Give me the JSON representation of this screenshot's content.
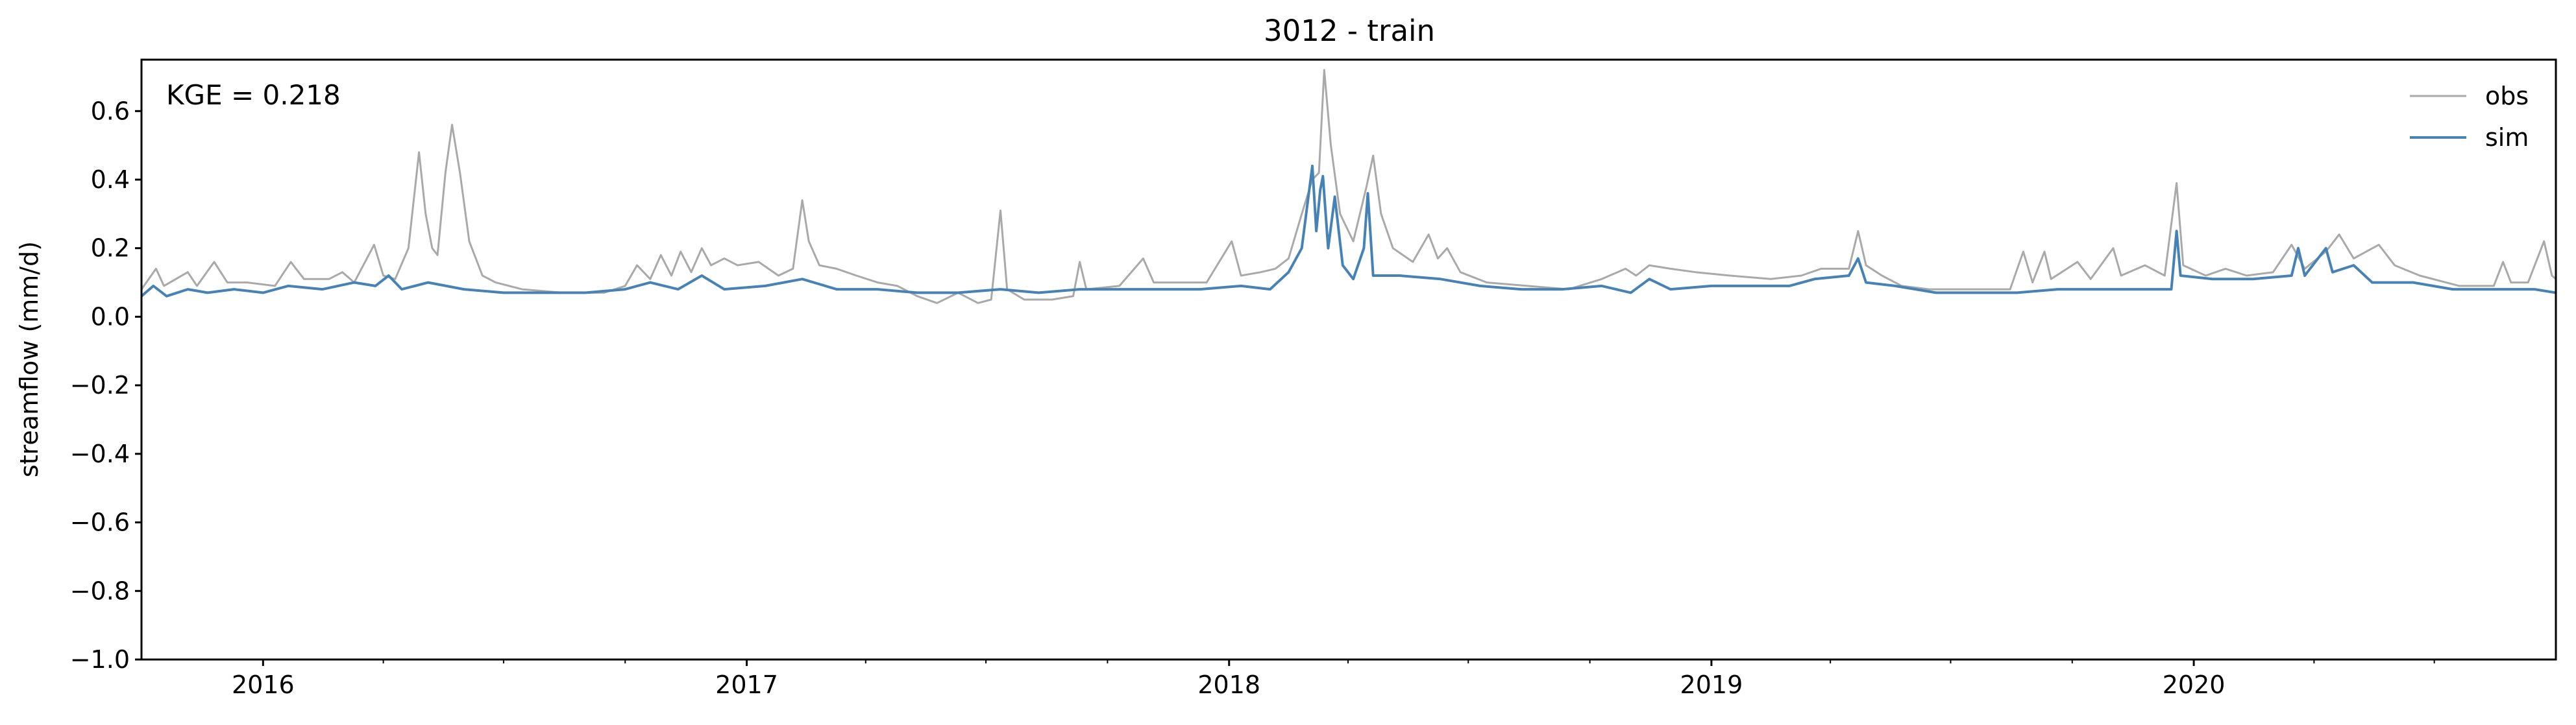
{
  "chart_data": {
    "type": "line",
    "title": "3012 - train",
    "xlabel": "",
    "ylabel": "streamflow (mm/d)",
    "annotation": "KGE = 0.218",
    "x_range": [
      "2015-10-01",
      "2020-10-01"
    ],
    "ylim": [
      -1.0,
      0.75
    ],
    "yticks": [
      0.6,
      0.4,
      0.2,
      0.0,
      -0.2,
      -0.4,
      -0.6,
      -0.8,
      -1.0
    ],
    "ytick_labels": [
      "0.6",
      "0.4",
      "0.2",
      "0.0",
      "−0.2",
      "−0.4",
      "−0.6",
      "−0.8",
      "−1.0"
    ],
    "xticks": [
      "2016-01-01",
      "2017-01-01",
      "2018-01-01",
      "2019-01-01",
      "2020-01-01"
    ],
    "xtick_labels": [
      "2016",
      "2017",
      "2018",
      "2019",
      "2020"
    ],
    "grid": false,
    "legend_position": "top-right",
    "series": [
      {
        "name": "obs",
        "color": "#a9a9a9",
        "points": [
          [
            "2015-10-01",
            0.08
          ],
          [
            "2015-10-12",
            0.14
          ],
          [
            "2015-10-18",
            0.09
          ],
          [
            "2015-11-05",
            0.13
          ],
          [
            "2015-11-12",
            0.09
          ],
          [
            "2015-11-25",
            0.16
          ],
          [
            "2015-12-05",
            0.1
          ],
          [
            "2015-12-20",
            0.1
          ],
          [
            "2016-01-10",
            0.09
          ],
          [
            "2016-01-22",
            0.16
          ],
          [
            "2016-02-01",
            0.11
          ],
          [
            "2016-02-20",
            0.11
          ],
          [
            "2016-03-01",
            0.13
          ],
          [
            "2016-03-10",
            0.1
          ],
          [
            "2016-03-25",
            0.21
          ],
          [
            "2016-04-01",
            0.12
          ],
          [
            "2016-04-10",
            0.11
          ],
          [
            "2016-04-20",
            0.2
          ],
          [
            "2016-04-28",
            0.48
          ],
          [
            "2016-05-03",
            0.3
          ],
          [
            "2016-05-08",
            0.2
          ],
          [
            "2016-05-12",
            0.18
          ],
          [
            "2016-05-18",
            0.42
          ],
          [
            "2016-05-23",
            0.56
          ],
          [
            "2016-05-29",
            0.42
          ],
          [
            "2016-06-05",
            0.22
          ],
          [
            "2016-06-15",
            0.12
          ],
          [
            "2016-06-25",
            0.1
          ],
          [
            "2016-07-15",
            0.08
          ],
          [
            "2016-08-15",
            0.07
          ],
          [
            "2016-09-15",
            0.07
          ],
          [
            "2016-10-01",
            0.09
          ],
          [
            "2016-10-10",
            0.15
          ],
          [
            "2016-10-20",
            0.11
          ],
          [
            "2016-10-28",
            0.18
          ],
          [
            "2016-11-05",
            0.12
          ],
          [
            "2016-11-12",
            0.19
          ],
          [
            "2016-11-20",
            0.13
          ],
          [
            "2016-11-28",
            0.2
          ],
          [
            "2016-12-05",
            0.15
          ],
          [
            "2016-12-15",
            0.17
          ],
          [
            "2016-12-25",
            0.15
          ],
          [
            "2017-01-10",
            0.16
          ],
          [
            "2017-01-25",
            0.12
          ],
          [
            "2017-02-05",
            0.14
          ],
          [
            "2017-02-12",
            0.34
          ],
          [
            "2017-02-17",
            0.22
          ],
          [
            "2017-02-25",
            0.15
          ],
          [
            "2017-03-10",
            0.14
          ],
          [
            "2017-03-25",
            0.12
          ],
          [
            "2017-04-10",
            0.1
          ],
          [
            "2017-04-25",
            0.09
          ],
          [
            "2017-05-10",
            0.06
          ],
          [
            "2017-05-25",
            0.04
          ],
          [
            "2017-06-10",
            0.07
          ],
          [
            "2017-06-25",
            0.04
          ],
          [
            "2017-07-05",
            0.05
          ],
          [
            "2017-07-12",
            0.31
          ],
          [
            "2017-07-17",
            0.08
          ],
          [
            "2017-07-30",
            0.05
          ],
          [
            "2017-08-20",
            0.05
          ],
          [
            "2017-09-05",
            0.06
          ],
          [
            "2017-09-10",
            0.16
          ],
          [
            "2017-09-15",
            0.08
          ],
          [
            "2017-10-10",
            0.09
          ],
          [
            "2017-10-28",
            0.17
          ],
          [
            "2017-11-05",
            0.1
          ],
          [
            "2017-11-25",
            0.1
          ],
          [
            "2017-12-15",
            0.1
          ],
          [
            "2018-01-03",
            0.22
          ],
          [
            "2018-01-10",
            0.12
          ],
          [
            "2018-01-25",
            0.13
          ],
          [
            "2018-02-05",
            0.14
          ],
          [
            "2018-02-15",
            0.17
          ],
          [
            "2018-02-25",
            0.3
          ],
          [
            "2018-03-05",
            0.4
          ],
          [
            "2018-03-10",
            0.42
          ],
          [
            "2018-03-14",
            0.72
          ],
          [
            "2018-03-19",
            0.5
          ],
          [
            "2018-03-26",
            0.3
          ],
          [
            "2018-04-05",
            0.22
          ],
          [
            "2018-04-15",
            0.38
          ],
          [
            "2018-04-20",
            0.47
          ],
          [
            "2018-04-26",
            0.3
          ],
          [
            "2018-05-05",
            0.2
          ],
          [
            "2018-05-20",
            0.16
          ],
          [
            "2018-06-01",
            0.24
          ],
          [
            "2018-06-08",
            0.17
          ],
          [
            "2018-06-15",
            0.2
          ],
          [
            "2018-06-25",
            0.13
          ],
          [
            "2018-07-15",
            0.1
          ],
          [
            "2018-08-15",
            0.09
          ],
          [
            "2018-09-15",
            0.08
          ],
          [
            "2018-10-10",
            0.11
          ],
          [
            "2018-10-28",
            0.14
          ],
          [
            "2018-11-05",
            0.12
          ],
          [
            "2018-11-15",
            0.15
          ],
          [
            "2018-12-01",
            0.14
          ],
          [
            "2018-12-20",
            0.13
          ],
          [
            "2019-01-15",
            0.12
          ],
          [
            "2019-02-15",
            0.11
          ],
          [
            "2019-03-10",
            0.12
          ],
          [
            "2019-03-25",
            0.14
          ],
          [
            "2019-04-15",
            0.14
          ],
          [
            "2019-04-22",
            0.25
          ],
          [
            "2019-04-28",
            0.15
          ],
          [
            "2019-05-10",
            0.12
          ],
          [
            "2019-05-25",
            0.09
          ],
          [
            "2019-06-15",
            0.08
          ],
          [
            "2019-07-15",
            0.08
          ],
          [
            "2019-08-15",
            0.08
          ],
          [
            "2019-08-25",
            0.19
          ],
          [
            "2019-09-01",
            0.1
          ],
          [
            "2019-09-10",
            0.19
          ],
          [
            "2019-09-15",
            0.11
          ],
          [
            "2019-10-05",
            0.16
          ],
          [
            "2019-10-15",
            0.11
          ],
          [
            "2019-11-01",
            0.2
          ],
          [
            "2019-11-07",
            0.12
          ],
          [
            "2019-11-25",
            0.15
          ],
          [
            "2019-12-10",
            0.12
          ],
          [
            "2019-12-19",
            0.39
          ],
          [
            "2019-12-24",
            0.15
          ],
          [
            "2020-01-10",
            0.12
          ],
          [
            "2020-01-25",
            0.14
          ],
          [
            "2020-02-10",
            0.12
          ],
          [
            "2020-03-01",
            0.13
          ],
          [
            "2020-03-15",
            0.21
          ],
          [
            "2020-03-25",
            0.14
          ],
          [
            "2020-04-10",
            0.19
          ],
          [
            "2020-04-20",
            0.24
          ],
          [
            "2020-05-01",
            0.17
          ],
          [
            "2020-05-20",
            0.21
          ],
          [
            "2020-06-01",
            0.15
          ],
          [
            "2020-06-20",
            0.12
          ],
          [
            "2020-07-20",
            0.09
          ],
          [
            "2020-08-15",
            0.09
          ],
          [
            "2020-08-22",
            0.16
          ],
          [
            "2020-08-28",
            0.1
          ],
          [
            "2020-09-10",
            0.1
          ],
          [
            "2020-09-22",
            0.22
          ],
          [
            "2020-09-28",
            0.12
          ],
          [
            "2020-10-01",
            0.11
          ]
        ]
      },
      {
        "name": "sim",
        "color": "#4682b4",
        "points": [
          [
            "2015-10-01",
            0.06
          ],
          [
            "2015-10-10",
            0.09
          ],
          [
            "2015-10-20",
            0.06
          ],
          [
            "2015-11-05",
            0.08
          ],
          [
            "2015-11-20",
            0.07
          ],
          [
            "2015-12-10",
            0.08
          ],
          [
            "2016-01-01",
            0.07
          ],
          [
            "2016-01-20",
            0.09
          ],
          [
            "2016-02-15",
            0.08
          ],
          [
            "2016-03-10",
            0.1
          ],
          [
            "2016-03-26",
            0.09
          ],
          [
            "2016-04-05",
            0.12
          ],
          [
            "2016-04-15",
            0.08
          ],
          [
            "2016-05-05",
            0.1
          ],
          [
            "2016-06-01",
            0.08
          ],
          [
            "2016-07-01",
            0.07
          ],
          [
            "2016-08-01",
            0.07
          ],
          [
            "2016-09-01",
            0.07
          ],
          [
            "2016-10-01",
            0.08
          ],
          [
            "2016-10-20",
            0.1
          ],
          [
            "2016-11-10",
            0.08
          ],
          [
            "2016-11-28",
            0.12
          ],
          [
            "2016-12-15",
            0.08
          ],
          [
            "2017-01-15",
            0.09
          ],
          [
            "2017-02-12",
            0.11
          ],
          [
            "2017-03-10",
            0.08
          ],
          [
            "2017-04-10",
            0.08
          ],
          [
            "2017-05-10",
            0.07
          ],
          [
            "2017-06-10",
            0.07
          ],
          [
            "2017-07-12",
            0.08
          ],
          [
            "2017-08-10",
            0.07
          ],
          [
            "2017-09-10",
            0.08
          ],
          [
            "2017-10-10",
            0.08
          ],
          [
            "2017-11-10",
            0.08
          ],
          [
            "2017-12-10",
            0.08
          ],
          [
            "2018-01-10",
            0.09
          ],
          [
            "2018-02-01",
            0.08
          ],
          [
            "2018-02-15",
            0.13
          ],
          [
            "2018-02-25",
            0.2
          ],
          [
            "2018-03-02",
            0.35
          ],
          [
            "2018-03-05",
            0.44
          ],
          [
            "2018-03-08",
            0.25
          ],
          [
            "2018-03-11",
            0.37
          ],
          [
            "2018-03-13",
            0.41
          ],
          [
            "2018-03-17",
            0.2
          ],
          [
            "2018-03-22",
            0.35
          ],
          [
            "2018-03-28",
            0.15
          ],
          [
            "2018-04-05",
            0.11
          ],
          [
            "2018-04-13",
            0.2
          ],
          [
            "2018-04-16",
            0.36
          ],
          [
            "2018-04-20",
            0.12
          ],
          [
            "2018-05-10",
            0.12
          ],
          [
            "2018-06-10",
            0.11
          ],
          [
            "2018-07-10",
            0.09
          ],
          [
            "2018-08-10",
            0.08
          ],
          [
            "2018-09-10",
            0.08
          ],
          [
            "2018-10-10",
            0.09
          ],
          [
            "2018-11-01",
            0.07
          ],
          [
            "2018-11-15",
            0.11
          ],
          [
            "2018-12-01",
            0.08
          ],
          [
            "2019-01-01",
            0.09
          ],
          [
            "2019-02-01",
            0.09
          ],
          [
            "2019-03-01",
            0.09
          ],
          [
            "2019-03-20",
            0.11
          ],
          [
            "2019-04-15",
            0.12
          ],
          [
            "2019-04-22",
            0.17
          ],
          [
            "2019-04-28",
            0.1
          ],
          [
            "2019-05-20",
            0.09
          ],
          [
            "2019-06-20",
            0.07
          ],
          [
            "2019-07-20",
            0.07
          ],
          [
            "2019-08-20",
            0.07
          ],
          [
            "2019-09-20",
            0.08
          ],
          [
            "2019-10-20",
            0.08
          ],
          [
            "2019-11-20",
            0.08
          ],
          [
            "2019-12-15",
            0.08
          ],
          [
            "2019-12-19",
            0.25
          ],
          [
            "2019-12-22",
            0.12
          ],
          [
            "2020-01-15",
            0.11
          ],
          [
            "2020-02-15",
            0.11
          ],
          [
            "2020-03-15",
            0.12
          ],
          [
            "2020-03-20",
            0.2
          ],
          [
            "2020-03-25",
            0.12
          ],
          [
            "2020-04-10",
            0.2
          ],
          [
            "2020-04-15",
            0.13
          ],
          [
            "2020-05-01",
            0.15
          ],
          [
            "2020-05-15",
            0.1
          ],
          [
            "2020-06-15",
            0.1
          ],
          [
            "2020-07-15",
            0.08
          ],
          [
            "2020-08-15",
            0.08
          ],
          [
            "2020-09-15",
            0.08
          ],
          [
            "2020-10-01",
            0.07
          ]
        ]
      }
    ]
  }
}
